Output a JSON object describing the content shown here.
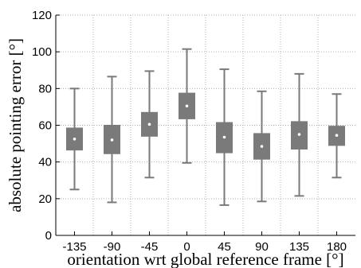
{
  "chart_data": {
    "type": "box",
    "title": "",
    "xlabel": "orientation wrt global reference frame [°]",
    "ylabel": "absolute pointing error [°]",
    "ylim": [
      0,
      120
    ],
    "yticks": [
      0,
      20,
      40,
      60,
      80,
      100,
      120
    ],
    "grid": true,
    "categories": [
      "-135",
      "-90",
      "-45",
      "0",
      "45",
      "90",
      "135",
      "180"
    ],
    "series": [
      {
        "boxes": [
          {
            "whisker_low": 25,
            "q1": 46.5,
            "q3": 58.5,
            "whisker_high": 80,
            "mean": 52.5
          },
          {
            "whisker_low": 18,
            "q1": 44.5,
            "q3": 60,
            "whisker_high": 86.5,
            "mean": 52
          },
          {
            "whisker_low": 31.5,
            "q1": 54,
            "q3": 67,
            "whisker_high": 89.5,
            "mean": 60.5
          },
          {
            "whisker_low": 39.5,
            "q1": 63.5,
            "q3": 77.5,
            "whisker_high": 101.5,
            "mean": 70.5
          },
          {
            "whisker_low": 16.5,
            "q1": 45,
            "q3": 61.5,
            "whisker_high": 90.5,
            "mean": 53.5
          },
          {
            "whisker_low": 18.5,
            "q1": 41.5,
            "q3": 55.5,
            "whisker_high": 78.5,
            "mean": 48.5
          },
          {
            "whisker_low": 21.5,
            "q1": 47,
            "q3": 62,
            "whisker_high": 88,
            "mean": 55
          },
          {
            "whisker_low": 31.5,
            "q1": 49,
            "q3": 59.5,
            "whisker_high": 77,
            "mean": 54.5
          }
        ]
      }
    ],
    "colors": {
      "box_fill": "#7a7a7a",
      "whisker": "#7a7a7a",
      "mean_marker": "#ffffff",
      "grid": "#b0b0b0",
      "axis": "#000000"
    }
  }
}
